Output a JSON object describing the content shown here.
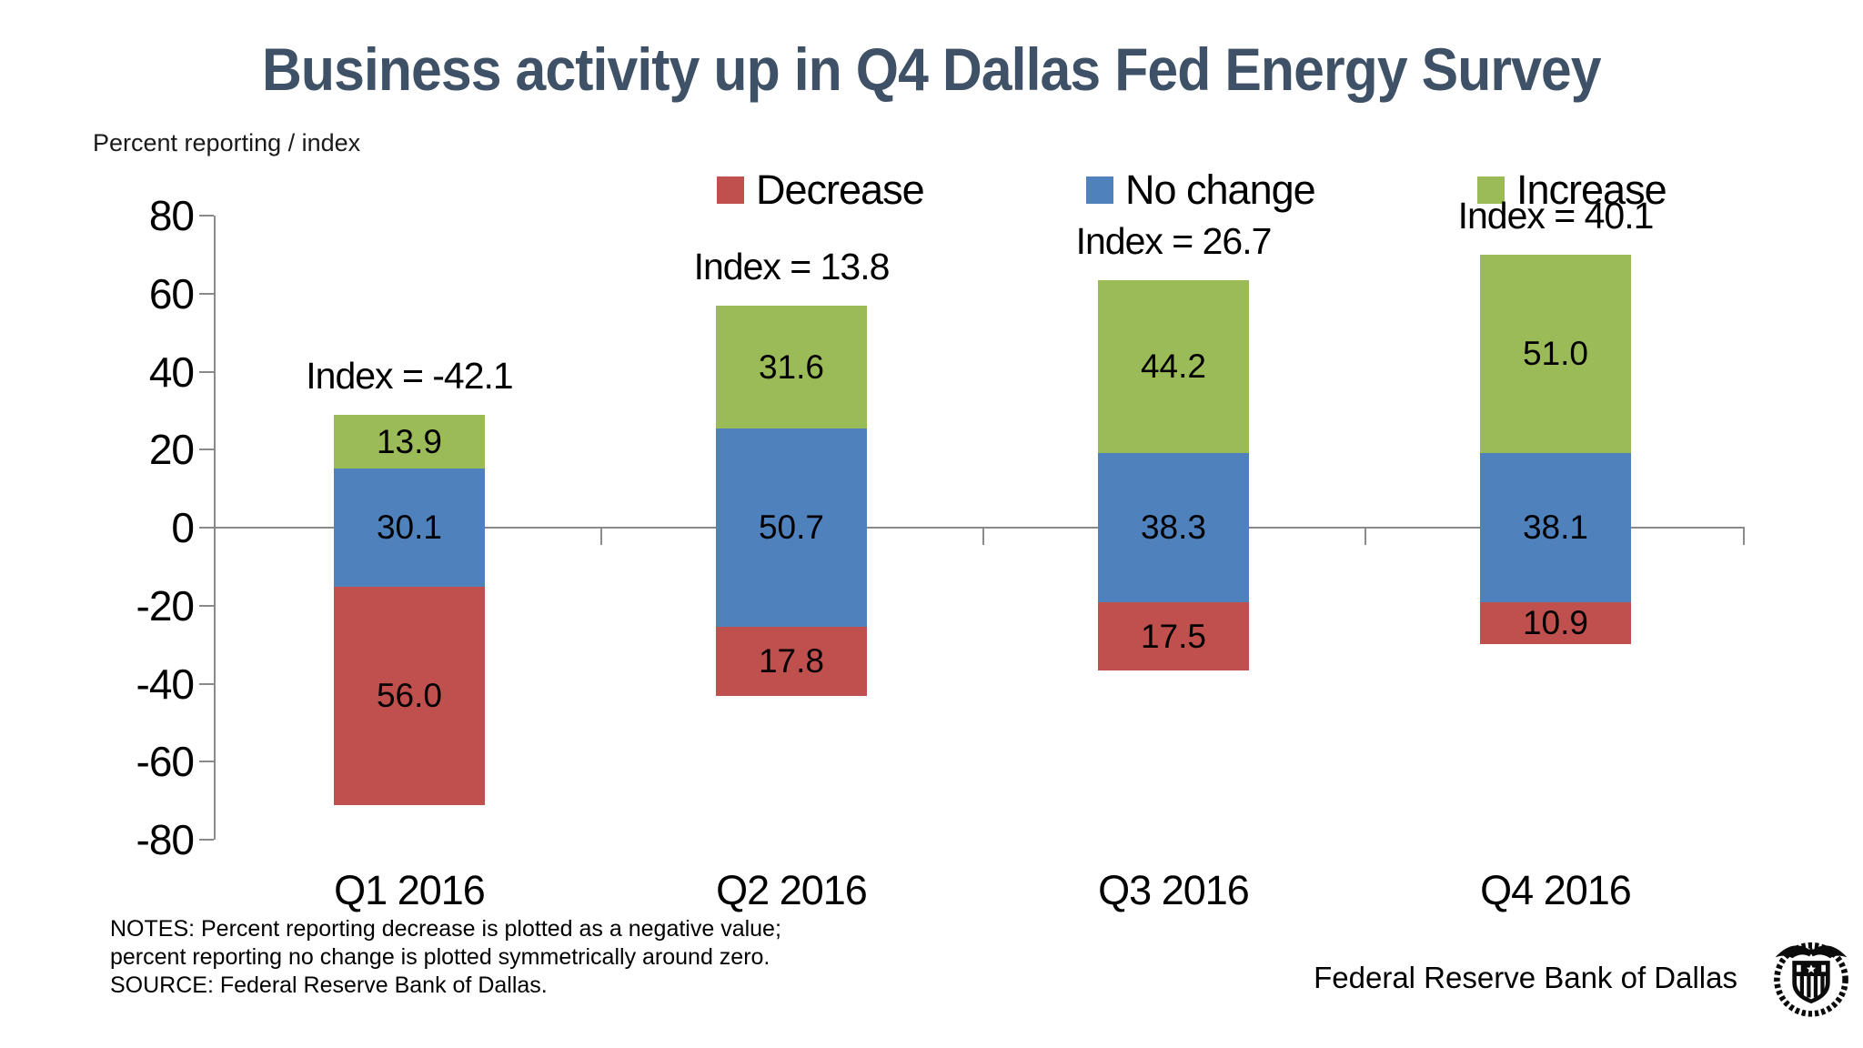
{
  "title": "Business activity up in Q4 Dallas Fed Energy Survey",
  "y_axis_title": "Percent reporting / index",
  "legend": [
    {
      "label": "Decrease",
      "color": "#C0504D"
    },
    {
      "label": "No change",
      "color": "#4F81BD"
    },
    {
      "label": "Increase",
      "color": "#9BBB59"
    }
  ],
  "chart_data": {
    "type": "stacked_bar",
    "title": "Business activity up in Q4 Dallas Fed Energy Survey",
    "ylabel": "Percent reporting / index",
    "categories": [
      "Q1 2016",
      "Q2 2016",
      "Q3 2016",
      "Q4 2016"
    ],
    "series": [
      {
        "name": "Decrease",
        "color": "#C0504D",
        "values": [
          56.0,
          17.8,
          17.5,
          10.9
        ]
      },
      {
        "name": "No change",
        "color": "#4F81BD",
        "values": [
          30.1,
          50.7,
          38.3,
          38.1
        ]
      },
      {
        "name": "Increase",
        "color": "#9BBB59",
        "values": [
          13.9,
          31.6,
          44.2,
          51.0
        ]
      }
    ],
    "index_values": [
      -42.1,
      13.8,
      26.7,
      40.1
    ],
    "index_labels": [
      "Index = -42.1",
      "Index = 13.8",
      "Index = 26.7",
      "Index = 40.1"
    ],
    "yticks": [
      80,
      60,
      40,
      20,
      0,
      -20,
      -40,
      -60,
      -80
    ],
    "ylim": [
      -80,
      80
    ],
    "layout": {
      "grid": false,
      "legend_position": "top",
      "plot_rule": "decrease plotted negative; no change plotted symmetrically around zero; increase stacked above"
    }
  },
  "notes": {
    "line1": "NOTES: Percent reporting decrease is plotted as a negative value;",
    "line2": "percent reporting no change is plotted symmetrically around zero.",
    "line3": "SOURCE: Federal Reserve Bank of Dallas."
  },
  "footer": {
    "org_label": "Federal Reserve Bank of Dallas",
    "logo": "federal-reserve-seal"
  }
}
